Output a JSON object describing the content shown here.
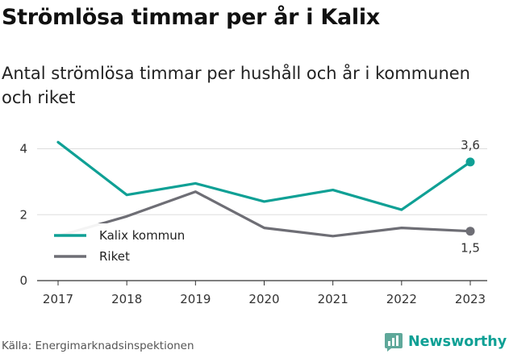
{
  "title": "Strömlösa timmar per år i Kalix",
  "subtitle": "Antal strömlösa timmar per hushåll och år i kommunen och riket",
  "source": "Källa: Energimarknadsinspektionen",
  "brand": {
    "name": "Newsworthy",
    "logo_icon": "newsworthy-logo-icon"
  },
  "colors": {
    "accent": "#0fa095",
    "secondary": "#6e6e75",
    "grid": "#dddddd",
    "axis": "#333333"
  },
  "chart_data": {
    "type": "line",
    "title": "",
    "xlabel": "",
    "ylabel": "",
    "x": [
      "2017",
      "2018",
      "2019",
      "2020",
      "2021",
      "2022",
      "2023"
    ],
    "ylim": [
      0,
      4.6
    ],
    "yticks": [
      0,
      2,
      4
    ],
    "grid": true,
    "legend": "left",
    "series": [
      {
        "name": "Kalix kommun",
        "color": "#0fa095",
        "values": [
          4.2,
          2.6,
          2.95,
          2.4,
          2.75,
          2.15,
          3.6
        ],
        "end_label": "3,6"
      },
      {
        "name": "Riket",
        "color": "#6e6e75",
        "values": [
          1.35,
          1.95,
          2.7,
          1.6,
          1.35,
          1.6,
          1.5
        ],
        "end_label": "1,5"
      }
    ]
  }
}
